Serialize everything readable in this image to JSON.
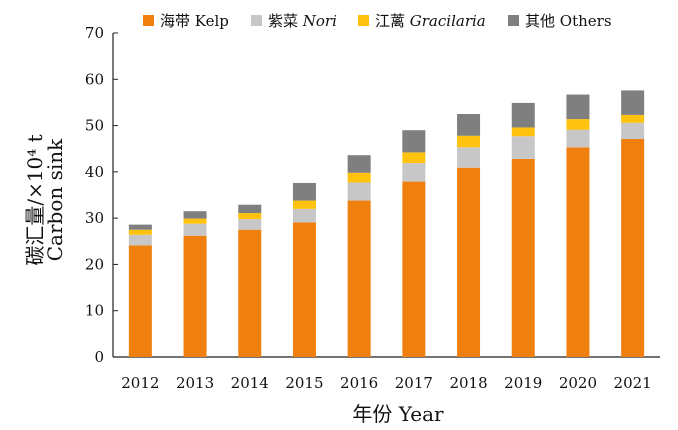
{
  "chart_data": {
    "type": "bar",
    "stacked": true,
    "categories": [
      "2012",
      "2013",
      "2014",
      "2015",
      "2016",
      "2017",
      "2018",
      "2019",
      "2020",
      "2021"
    ],
    "series": [
      {
        "name": "海带 Kelp",
        "name_zh": "海带",
        "name_en": "Kelp",
        "color": "#ef7f0e",
        "values": [
          24.1,
          26.2,
          27.5,
          29.1,
          33.8,
          37.9,
          40.9,
          42.8,
          45.3,
          47.1
        ]
      },
      {
        "name": "紫菜 Nori",
        "name_zh": "紫菜",
        "name_en": "Nori",
        "color": "#c7c7c7",
        "values": [
          2.3,
          2.6,
          2.3,
          2.9,
          3.9,
          4.0,
          4.4,
          4.9,
          3.8,
          3.5
        ]
      },
      {
        "name": "江蓠 Gracilaria",
        "name_zh": "江蓠",
        "name_en": "Gracilaria",
        "color": "#ffc20e",
        "values": [
          1.1,
          1.1,
          1.3,
          1.8,
          2.1,
          2.3,
          2.5,
          1.9,
          2.3,
          1.7
        ]
      },
      {
        "name": "其他 Others",
        "name_zh": "其他",
        "name_en": "Others",
        "color": "#7f7f7f",
        "values": [
          1.1,
          1.6,
          1.8,
          3.8,
          3.8,
          4.8,
          4.7,
          5.3,
          5.3,
          5.3
        ]
      }
    ],
    "title": "",
    "xlabel": "年份 Year",
    "ylabel_line1": "碳汇量/×10⁴ t",
    "ylabel_line2": "Carbon sink",
    "ylim": [
      0,
      70
    ],
    "yticks": [
      "0",
      "10",
      "20",
      "30",
      "40",
      "50",
      "60",
      "70"
    ],
    "grid": false,
    "legend_position": "top"
  }
}
